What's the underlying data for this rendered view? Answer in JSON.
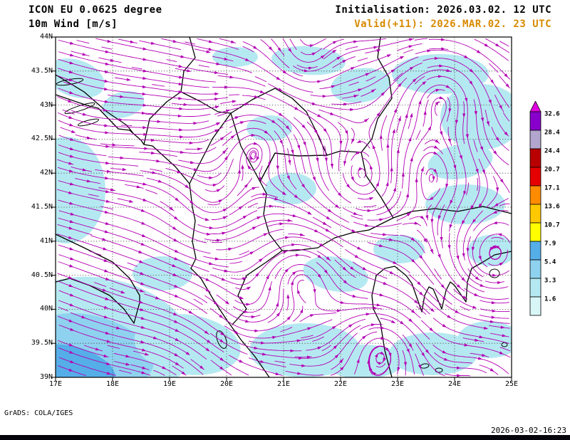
{
  "header": {
    "model_title": "ICON EU 0.0625 degree",
    "field_title": "10m Wind [m/s]",
    "init_line": "Initialisation: 2026.03.02. 12 UTC",
    "valid_line": "Valid(+11): 2026.MAR.02. 23 UTC"
  },
  "footer": {
    "credit": "GrADS: COLA/IGES",
    "timestamp": "2026-03-02-16:23"
  },
  "axes": {
    "lat_labels": [
      "44N",
      "43.5N",
      "43N",
      "42.5N",
      "42N",
      "41.5N",
      "41N",
      "40.5N",
      "40N",
      "39.5N",
      "39N"
    ],
    "lon_labels": [
      "17E",
      "18E",
      "19E",
      "20E",
      "21E",
      "22E",
      "23E",
      "24E",
      "25E"
    ]
  },
  "legend": {
    "levels": [
      "32.6",
      "28.4",
      "24.4",
      "20.7",
      "17.1",
      "13.6",
      "10.7",
      "7.9",
      "5.4",
      "3.3",
      "1.6"
    ],
    "band_colors": [
      "#8800cc",
      "#b3a6ce",
      "#b80000",
      "#e60000",
      "#ff8c00",
      "#ffc800",
      "#ffff00",
      "#55aee8",
      "#8fd2ef",
      "#b5e9f1",
      "#d9f6f6"
    ],
    "above_max_color": "#e000e0"
  },
  "colors": {
    "streamline": "#b400b4",
    "shade_light": "#b5e9f1",
    "shade_mid": "#8fd2ef",
    "shade_deep": "#55aee8",
    "grid": "#404040",
    "coast": "#000000",
    "valid_text": "#d88a00"
  }
}
